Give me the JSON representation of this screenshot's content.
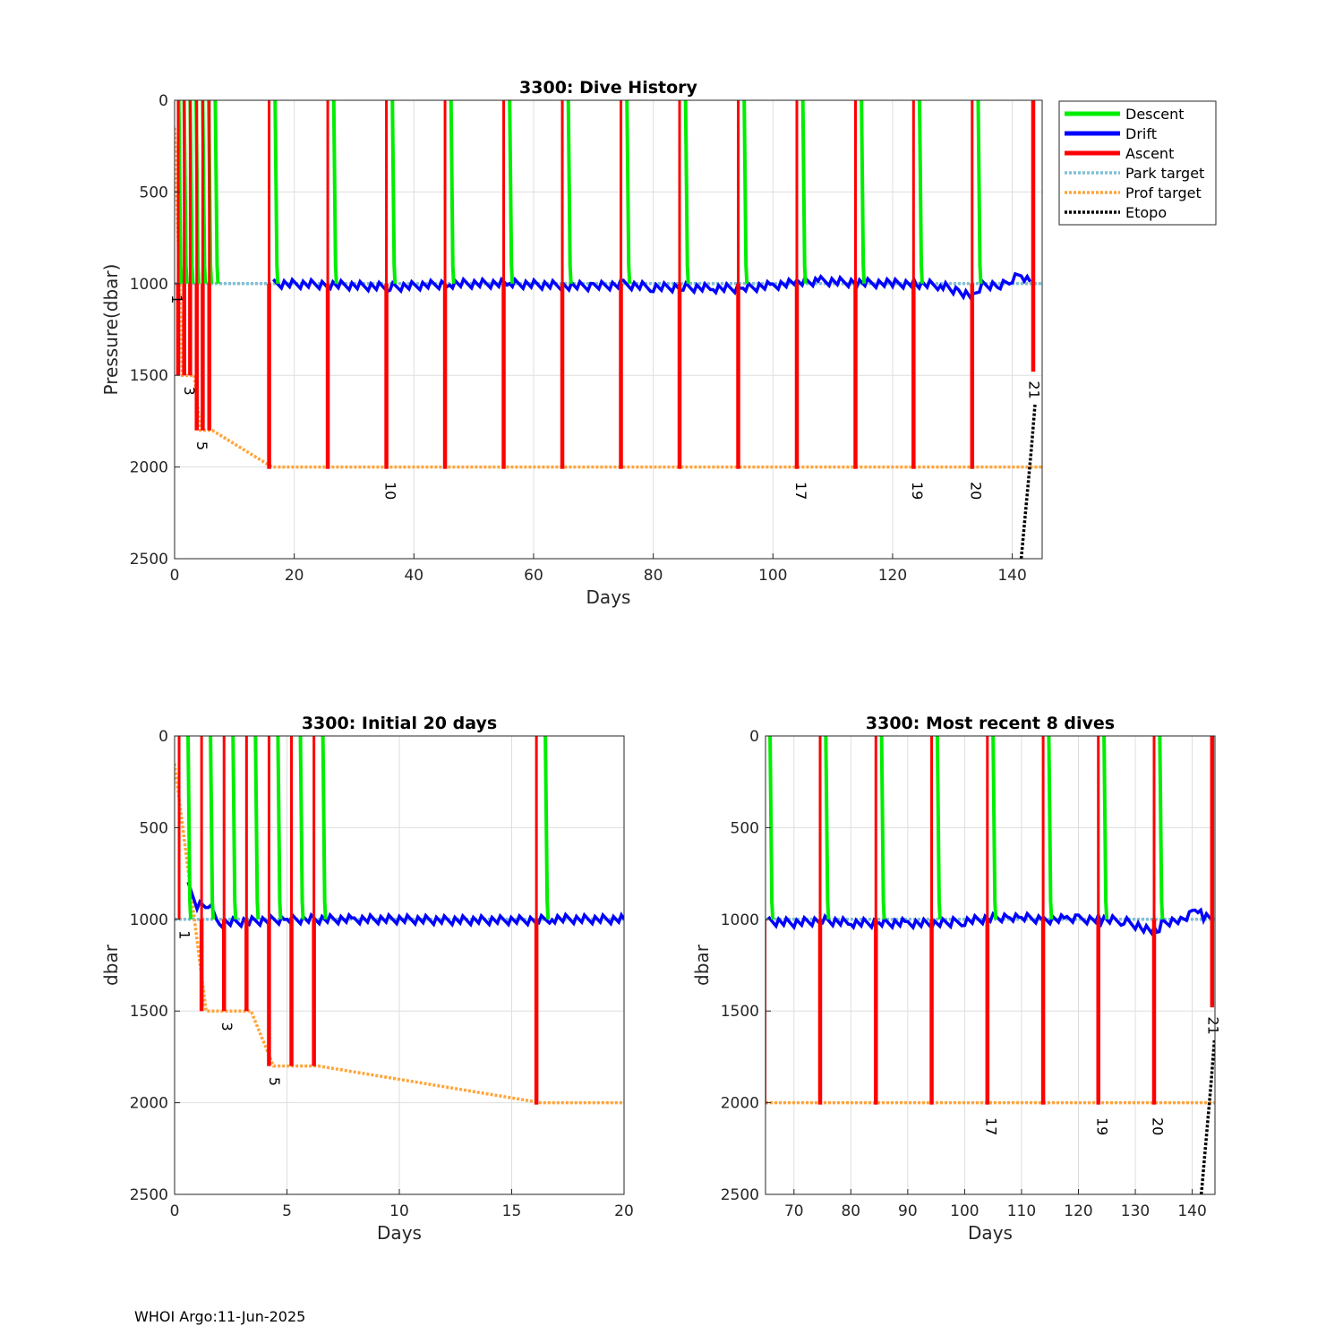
{
  "footer": "WHOI Argo:11-Jun-2025",
  "colors": {
    "descent": "#00ee00",
    "drift": "#0000ff",
    "ascent": "#ff0000",
    "park": "#80c0d8",
    "prof": "#ffa53a",
    "etopo": "#000000"
  },
  "legend": {
    "placement": "outside-right",
    "entries": [
      {
        "label": "Descent",
        "color": "#00ee00",
        "style": "solid"
      },
      {
        "label": "Drift",
        "color": "#0000ff",
        "style": "solid"
      },
      {
        "label": "Ascent",
        "color": "#ff0000",
        "style": "solid"
      },
      {
        "label": "Park target",
        "color": "#80c0d8",
        "style": "dotted"
      },
      {
        "label": "Prof target",
        "color": "#ffa53a",
        "style": "dotted"
      },
      {
        "label": "Etopo",
        "color": "#000000",
        "style": "dotted"
      }
    ]
  },
  "chart_data": [
    {
      "type": "line",
      "title": "3300: Dive History",
      "xlabel": "Days",
      "ylabel": "Pressure(dbar)",
      "xlim": [
        0,
        145
      ],
      "ylim": [
        0,
        2500
      ],
      "y_reversed": true,
      "grid": true,
      "xticks": [
        0,
        20,
        40,
        60,
        80,
        100,
        120,
        140
      ],
      "yticks": [
        0,
        500,
        1000,
        1500,
        2000,
        2500
      ],
      "cycle_days": [
        0.2,
        1.1,
        2.1,
        3.1,
        4.2,
        5.2,
        6.3,
        16.3,
        26.1,
        35.9,
        45.7,
        55.5,
        65.3,
        75.1,
        84.9,
        94.7,
        104.5,
        114.3,
        124.0,
        133.8
      ],
      "cycle_depths": [
        1000,
        1500,
        1500,
        1500,
        1800,
        1800,
        1800,
        2010,
        2010,
        2010,
        2010,
        2010,
        2010,
        2010,
        2010,
        2010,
        2010,
        2010,
        2010,
        2010
      ],
      "last_ascent": {
        "day": 143.5,
        "depth": 1480
      },
      "drift_series": {
        "x": [
          16.5,
          26,
          36,
          46,
          56,
          65,
          70,
          75,
          80,
          85,
          90,
          95,
          100,
          104,
          108,
          114,
          120,
          124,
          128,
          131,
          133.5,
          135,
          138,
          140,
          141.5,
          143
        ],
        "y": [
          1000,
          1005,
          1020,
          1000,
          1000,
          1010,
          1015,
          1005,
          1020,
          1020,
          1025,
          1025,
          1010,
          995,
          985,
          995,
          1000,
          1000,
          1010,
          1040,
          1070,
          1010,
          1005,
          980,
          950,
          990
        ]
      },
      "park_target": 1000,
      "prof_target": {
        "x": [
          0,
          1.3,
          3.3,
          4.3,
          6.3,
          16.3,
          145
        ],
        "y": [
          150,
          1500,
          1500,
          1800,
          1800,
          2000,
          2000
        ]
      },
      "etopo": {
        "x": [
          141.5,
          143.2,
          143.8
        ],
        "y": [
          2500,
          1900,
          1660
        ]
      },
      "annotations": [
        {
          "text": "1",
          "x": 0.2,
          "y": 1060
        },
        {
          "text": "3",
          "x": 2.3,
          "y": 1560
        },
        {
          "text": "5",
          "x": 4.4,
          "y": 1860
        },
        {
          "text": "10",
          "x": 35.9,
          "y": 2080
        },
        {
          "text": "17",
          "x": 104.5,
          "y": 2080
        },
        {
          "text": "19",
          "x": 124.0,
          "y": 2080
        },
        {
          "text": "20",
          "x": 133.8,
          "y": 2080
        },
        {
          "text": "21",
          "x": 143.5,
          "y": 1530
        }
      ]
    },
    {
      "type": "line",
      "title": "3300: Initial 20 days",
      "xlabel": "Days",
      "ylabel": "dbar",
      "xlim": [
        0,
        20
      ],
      "ylim": [
        0,
        2500
      ],
      "y_reversed": true,
      "grid": true,
      "xticks": [
        0,
        5,
        10,
        15,
        20
      ],
      "yticks": [
        0,
        500,
        1000,
        1500,
        2000,
        2500
      ],
      "cycle_days": [
        0.4,
        1.4,
        2.4,
        3.4,
        4.4,
        5.4,
        6.4,
        16.3
      ],
      "cycle_depths": [
        1000,
        1500,
        1500,
        1500,
        1800,
        1800,
        1800,
        2010
      ],
      "drift_series": {
        "x": [
          0.6,
          1.0,
          1.5,
          2.0,
          5,
          8,
          10,
          12,
          14,
          16.2,
          16.8,
          18,
          20
        ],
        "y": [
          820,
          920,
          920,
          1020,
          1000,
          1000,
          1000,
          1005,
          1005,
          1005,
          995,
          1000,
          1000
        ]
      },
      "park_target": 1000,
      "prof_target": {
        "x": [
          0,
          1.4,
          3.4,
          4.4,
          6.4,
          16.3,
          20
        ],
        "y": [
          150,
          1500,
          1500,
          1800,
          1800,
          2000,
          2000
        ]
      },
      "annotations": [
        {
          "text": "1",
          "x": 0.4,
          "y": 1060
        },
        {
          "text": "3",
          "x": 2.3,
          "y": 1560
        },
        {
          "text": "5",
          "x": 4.4,
          "y": 1860
        }
      ]
    },
    {
      "type": "line",
      "title": "3300: Most recent 8 dives",
      "xlabel": "Days",
      "ylabel": "dbar",
      "xlim": [
        65,
        144
      ],
      "ylim": [
        0,
        2500
      ],
      "y_reversed": true,
      "grid": true,
      "xticks": [
        70,
        80,
        90,
        100,
        110,
        120,
        130,
        140
      ],
      "yticks": [
        0,
        500,
        1000,
        1500,
        2000,
        2500
      ],
      "cycle_days": [
        65.3,
        75.1,
        84.9,
        94.7,
        104.5,
        114.3,
        124.0,
        133.8
      ],
      "cycle_depths": [
        2010,
        2010,
        2010,
        2010,
        2010,
        2010,
        2010,
        2010
      ],
      "last_ascent": {
        "day": 143.5,
        "depth": 1480
      },
      "drift_series": {
        "x": [
          65.5,
          70,
          75,
          80,
          85,
          90,
          94.7,
          98,
          100,
          104.5,
          108,
          110,
          114,
          118,
          120,
          124,
          128,
          131,
          133.8,
          135,
          138,
          140,
          141,
          142,
          143.5
        ],
        "y": [
          1010,
          1020,
          1005,
          1020,
          1020,
          1020,
          1025,
          1015,
          1010,
          995,
          985,
          990,
          1000,
          1000,
          1000,
          1000,
          1010,
          1040,
          1070,
          1015,
          1005,
          975,
          940,
          990,
          1000
        ]
      },
      "park_target": 1000,
      "prof_target": {
        "x": [
          65,
          144
        ],
        "y": [
          2000,
          2000
        ]
      },
      "etopo": {
        "x": [
          141.6,
          143.3,
          143.9
        ],
        "y": [
          2500,
          1900,
          1660
        ]
      },
      "annotations": [
        {
          "text": "17",
          "x": 104.5,
          "y": 2080
        },
        {
          "text": "19",
          "x": 124.0,
          "y": 2080
        },
        {
          "text": "20",
          "x": 133.8,
          "y": 2080
        },
        {
          "text": "21",
          "x": 143.5,
          "y": 1530
        }
      ]
    }
  ]
}
